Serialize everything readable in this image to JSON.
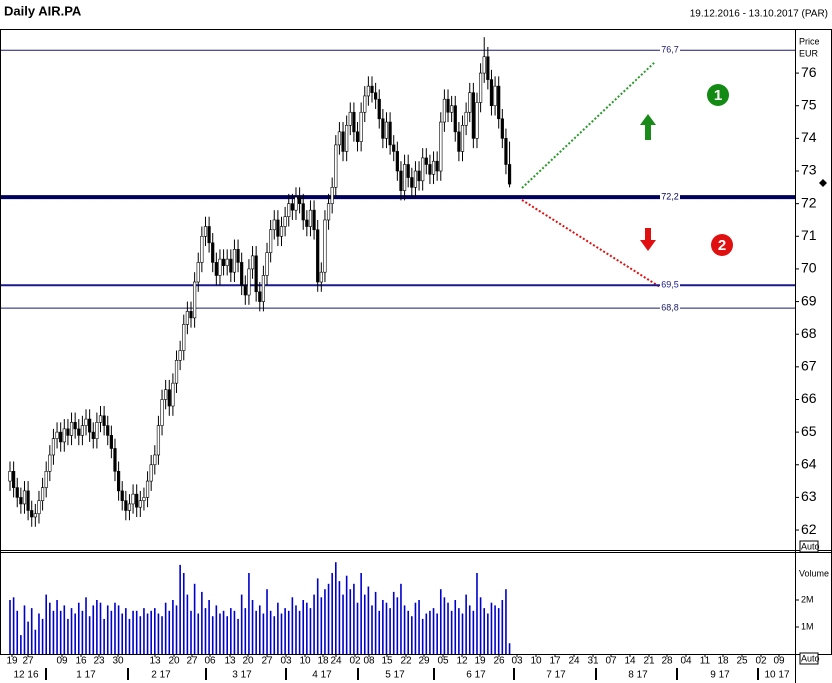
{
  "chart_data": {
    "type": "candlestick",
    "title": "Daily AIR.PA",
    "subtitle": "19.12.2016 - 13.10.2017 (PAR)",
    "y_axis_label": "Price",
    "y_axis_unit": "EUR",
    "scale_mode": "Auto",
    "ylim": [
      61.45,
      77.32
    ],
    "yticks": [
      62,
      63,
      64,
      65,
      66,
      67,
      68,
      69,
      70,
      71,
      72,
      73,
      74,
      75,
      76
    ],
    "up_color": "#ffffff",
    "down_color": "#000000",
    "open": [
      63.5,
      63.8,
      63.3,
      63.0,
      62.8,
      63.2,
      62.6,
      62.4,
      62.5,
      62.9,
      63.3,
      63.8,
      64.3,
      64.8,
      65.0,
      64.7,
      65.1,
      64.9,
      65.3,
      65.1,
      64.9,
      65.2,
      65.4,
      65.0,
      64.8,
      65.3,
      65.5,
      65.2,
      64.9,
      64.5,
      63.8,
      63.2,
      62.9,
      62.6,
      62.8,
      63.1,
      62.7,
      62.9,
      63.0,
      63.5,
      64.0,
      64.3,
      65.2,
      66.0,
      66.3,
      65.8,
      66.5,
      67.2,
      67.5,
      68.3,
      68.7,
      68.5,
      69.6,
      70.2,
      71.0,
      71.3,
      70.8,
      70.2,
      69.8,
      70.3,
      70.1,
      70.3,
      69.9,
      70.6,
      70.2,
      69.5,
      69.2,
      70.0,
      70.4,
      69.3,
      69.0,
      69.8,
      70.5,
      71.2,
      71.5,
      71.0,
      71.3,
      71.6,
      72.0,
      71.8,
      72.2,
      72.0,
      71.5,
      71.3,
      71.8,
      71.2,
      69.6,
      69.9,
      71.5,
      72.0,
      72.5,
      73.8,
      74.2,
      73.6,
      74.4,
      74.8,
      74.2,
      73.9,
      74.8,
      75.3,
      75.6,
      75.4,
      75.2,
      74.6,
      74.0,
      74.5,
      73.8,
      73.6,
      73.0,
      72.4,
      73.2,
      72.8,
      72.5,
      73.0,
      72.7,
      73.4,
      73.2,
      72.9,
      73.3,
      73.0,
      74.5,
      75.2,
      74.8,
      75.0,
      74.2,
      73.6,
      74.4,
      74.8,
      75.4,
      74.0,
      75.1,
      76.0,
      76.5,
      75.8,
      75.0,
      75.6,
      74.6,
      74.0,
      73.2
    ],
    "high": [
      64.1,
      64.1,
      63.6,
      63.3,
      63.5,
      63.5,
      62.9,
      62.8,
      63.2,
      63.6,
      64.1,
      64.6,
      65.1,
      65.3,
      65.3,
      65.4,
      65.4,
      65.6,
      65.6,
      65.4,
      65.5,
      65.7,
      65.7,
      65.3,
      65.6,
      65.8,
      65.8,
      65.5,
      65.2,
      64.8,
      64.1,
      63.5,
      63.2,
      63.1,
      63.4,
      63.4,
      63.2,
      63.3,
      63.8,
      64.3,
      64.6,
      65.5,
      66.3,
      66.6,
      66.6,
      66.8,
      67.5,
      67.8,
      68.6,
      69.0,
      69.0,
      69.9,
      70.5,
      71.3,
      71.6,
      71.6,
      71.1,
      70.5,
      70.6,
      70.6,
      70.6,
      70.6,
      70.9,
      70.9,
      70.5,
      69.8,
      70.3,
      70.7,
      70.7,
      69.6,
      70.1,
      70.8,
      71.5,
      71.8,
      71.8,
      71.6,
      71.9,
      72.3,
      72.3,
      72.5,
      72.5,
      72.3,
      71.8,
      72.1,
      72.1,
      71.5,
      70.2,
      71.8,
      72.3,
      72.8,
      74.1,
      74.5,
      74.5,
      74.7,
      75.1,
      75.1,
      74.5,
      75.1,
      75.6,
      75.9,
      75.9,
      75.7,
      75.5,
      74.9,
      74.8,
      74.8,
      74.1,
      73.9,
      73.3,
      73.5,
      73.5,
      73.1,
      73.3,
      73.3,
      73.7,
      73.7,
      73.5,
      73.6,
      73.6,
      74.8,
      75.5,
      75.5,
      75.3,
      75.3,
      74.5,
      74.7,
      75.1,
      75.7,
      75.7,
      75.4,
      76.3,
      77.1,
      76.8,
      76.1,
      75.9,
      75.9,
      74.9,
      74.3,
      73.9
    ],
    "low": [
      63.2,
      63.0,
      62.7,
      62.5,
      62.5,
      62.3,
      62.1,
      62.1,
      62.2,
      62.6,
      63.0,
      63.5,
      64.0,
      64.5,
      64.4,
      64.4,
      64.6,
      64.6,
      64.8,
      64.6,
      64.6,
      64.9,
      64.7,
      64.5,
      64.5,
      65.0,
      64.9,
      64.6,
      64.2,
      63.5,
      62.9,
      62.6,
      62.3,
      62.3,
      62.5,
      62.4,
      62.4,
      62.6,
      62.7,
      63.2,
      63.7,
      64.0,
      64.9,
      65.7,
      65.5,
      65.5,
      66.2,
      66.9,
      67.2,
      68.0,
      68.2,
      68.2,
      69.3,
      69.9,
      70.7,
      70.5,
      69.9,
      69.5,
      69.5,
      69.8,
      69.8,
      69.6,
      69.6,
      69.9,
      69.2,
      68.9,
      68.9,
      69.7,
      69.0,
      68.7,
      68.7,
      69.5,
      70.2,
      70.9,
      70.7,
      70.7,
      71.0,
      71.3,
      71.5,
      71.5,
      71.7,
      71.2,
      71.0,
      71.0,
      70.9,
      69.3,
      69.3,
      69.6,
      71.2,
      71.7,
      72.2,
      73.5,
      73.3,
      73.3,
      74.1,
      73.9,
      73.6,
      73.6,
      74.5,
      75.0,
      75.1,
      74.9,
      74.3,
      73.7,
      73.7,
      73.5,
      73.3,
      72.7,
      72.1,
      72.1,
      72.5,
      72.2,
      72.2,
      72.4,
      72.4,
      72.9,
      72.6,
      72.6,
      72.7,
      72.7,
      74.2,
      74.5,
      74.5,
      73.9,
      73.3,
      73.3,
      74.1,
      74.5,
      73.7,
      73.7,
      74.8,
      75.7,
      75.5,
      74.7,
      74.7,
      74.3,
      73.7,
      72.9,
      72.5
    ],
    "close": [
      63.8,
      63.3,
      63.0,
      62.8,
      63.2,
      62.6,
      62.4,
      62.5,
      62.9,
      63.3,
      63.8,
      64.3,
      64.8,
      65.0,
      64.7,
      65.1,
      64.9,
      65.3,
      65.1,
      64.9,
      65.2,
      65.4,
      65.0,
      64.8,
      65.3,
      65.5,
      65.2,
      64.9,
      64.5,
      63.8,
      63.2,
      62.9,
      62.6,
      62.8,
      63.1,
      62.7,
      62.9,
      63.0,
      63.5,
      64.0,
      64.3,
      65.2,
      66.0,
      66.3,
      65.8,
      66.5,
      67.2,
      67.5,
      68.3,
      68.7,
      68.5,
      69.6,
      70.2,
      71.0,
      71.3,
      70.8,
      70.2,
      69.8,
      70.3,
      70.1,
      70.3,
      69.9,
      70.6,
      70.2,
      69.5,
      69.2,
      70.0,
      70.4,
      69.3,
      69.0,
      69.8,
      70.5,
      71.2,
      71.5,
      71.0,
      71.3,
      71.6,
      72.0,
      71.8,
      72.2,
      72.0,
      71.5,
      71.3,
      71.8,
      71.2,
      69.6,
      69.9,
      71.5,
      72.0,
      72.5,
      73.8,
      74.2,
      73.6,
      74.4,
      74.8,
      74.2,
      73.9,
      74.8,
      75.3,
      75.6,
      75.4,
      75.2,
      74.6,
      74.0,
      74.5,
      73.8,
      73.6,
      73.0,
      72.4,
      73.2,
      72.8,
      72.5,
      73.0,
      72.7,
      73.4,
      73.2,
      72.9,
      73.3,
      73.0,
      74.5,
      75.2,
      74.8,
      75.0,
      74.2,
      73.6,
      74.4,
      74.8,
      75.4,
      74.0,
      75.1,
      76.0,
      76.5,
      75.8,
      75.0,
      75.6,
      74.6,
      74.0,
      73.2,
      72.6
    ],
    "levels": [
      {
        "value": 76.7,
        "label": "76,7",
        "color": "#1a1a6e",
        "width": 1
      },
      {
        "value": 72.2,
        "label": "72,2",
        "color": "#00005e",
        "width": 4
      },
      {
        "value": 69.5,
        "label": "69,5",
        "color": "#1a1a8e",
        "width": 2
      },
      {
        "value": 68.8,
        "label": "68,8",
        "color": "#1a1a6e",
        "width": 1
      }
    ],
    "annotations": [
      "1",
      "2"
    ],
    "x_tick_labels": [
      "19",
      "27",
      "09",
      "16",
      "23",
      "30",
      "13",
      "20",
      "27",
      "06",
      "13",
      "20",
      "27",
      "03",
      "10",
      "18",
      "24",
      "02",
      "08",
      "15",
      "22",
      "29",
      "05",
      "12",
      "19",
      "26",
      "03",
      "10",
      "17",
      "24",
      "31",
      "07",
      "14",
      "21",
      "28",
      "04",
      "11",
      "18",
      "25",
      "02",
      "09"
    ],
    "month_labels": [
      "12 16",
      "1 17",
      "2 17",
      "3 17",
      "4 17",
      "5 17",
      "6 17",
      "7 17",
      "8 17",
      "9 17",
      "10 17"
    ],
    "volume": {
      "name": "Volume",
      "color": "#0000cc",
      "scale_mode": "Auto",
      "ylim": [
        0,
        3630000
      ],
      "yticks": [
        {
          "value": 1000000,
          "label": "1M"
        },
        {
          "value": 2000000,
          "label": "2M"
        }
      ],
      "values": [
        2000000.0,
        2100000.0,
        1600000.0,
        700000.0,
        1800000.0,
        1200000.0,
        1700000.0,
        900000.0,
        1500000.0,
        1300000.0,
        2200000.0,
        1900000.0,
        1600000.0,
        2000000.0,
        1600000.0,
        1800000.0,
        1300000.0,
        1700000.0,
        1500000.0,
        1900000.0,
        1600000.0,
        2100000.0,
        1400000.0,
        1800000.0,
        2000000.0,
        1900000.0,
        1300000.0,
        1800000.0,
        1600000.0,
        1900000.0,
        1800000.0,
        1500000.0,
        1700000.0,
        1300000.0,
        1600000.0,
        1600000.0,
        1400000.0,
        1700000.0,
        1500000.0,
        1600000.0,
        1700000.0,
        1500000.0,
        1400000.0,
        1900000.0,
        1600000.0,
        2000000.0,
        1800000.0,
        3300000.0,
        3000000.0,
        2200000.0,
        1600000.0,
        2600000.0,
        1500000.0,
        2300000.0,
        1700000.0,
        2000000.0,
        1400000.0,
        1800000.0,
        1500000.0,
        1600000.0,
        1400000.0,
        1700000.0,
        1600000.0,
        1300000.0,
        2200000.0,
        1700000.0,
        3000000.0,
        2000000.0,
        1600000.0,
        1800000.0,
        1500000.0,
        2400000.0,
        1600000.0,
        1400000.0,
        1900000.0,
        1500000.0,
        1700000.0,
        1600000.0,
        2100000.0,
        1800000.0,
        1600000.0,
        2000000.0,
        1900000.0,
        1700000.0,
        2200000.0,
        2800000.0,
        2100000.0,
        2400000.0,
        2600000.0,
        3000000.0,
        3400000.0,
        2700000.0,
        2200000.0,
        2900000.0,
        2400000.0,
        2600000.0,
        1900000.0,
        3000000.0,
        2200000.0,
        2500000.0,
        1800000.0,
        2300000.0,
        1600000.0,
        2000000.0,
        1900000.0,
        1700000.0,
        2300000.0,
        2100000.0,
        2600000.0,
        1800000.0,
        1600000.0,
        1400000.0,
        1900000.0,
        2000000.0,
        1300000.0,
        1500000.0,
        1600000.0,
        1700000.0,
        1500000.0,
        2400000.0,
        2100000.0,
        1900000.0,
        1600000.0,
        2000000.0,
        1700000.0,
        1500000.0,
        2200000.0,
        1800000.0,
        1600000.0,
        3000000.0,
        2100000.0,
        1700000.0,
        1500000.0,
        1900000.0,
        1800000.0,
        1700000.0,
        2000000.0,
        2400000.0,
        400000.0
      ]
    }
  }
}
